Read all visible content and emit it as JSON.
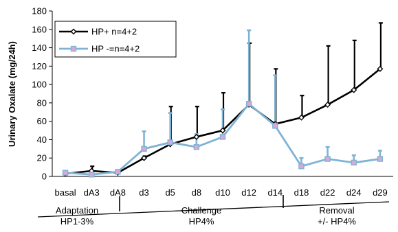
{
  "chart_data": {
    "type": "line",
    "title": "",
    "xlabel": "",
    "ylabel": "Urinary Oxalate (mg/24h)",
    "ylim": [
      0,
      180
    ],
    "yticks": [
      0,
      20,
      40,
      60,
      80,
      100,
      120,
      140,
      160,
      180
    ],
    "categories": [
      "basal",
      "dA3",
      "dA8",
      "d3",
      "d5",
      "d8",
      "d10",
      "d12",
      "d14",
      "d18",
      "d22",
      "d24",
      "d29"
    ],
    "grid": false,
    "legend_position": "top-left",
    "series": [
      {
        "name": "HP+ n=4+2",
        "color": "#000000",
        "marker": "diamond",
        "values": [
          3,
          6,
          4,
          20,
          35,
          43,
          50,
          78,
          57,
          64,
          78,
          94,
          117
        ],
        "error_upper": [
          3,
          11,
          4,
          22,
          76,
          76,
          91,
          145,
          117,
          88,
          142,
          148,
          167
        ]
      },
      {
        "name": "HP -=n=4+2",
        "color": "#7fb3d5",
        "marker": "square",
        "values": [
          4,
          2,
          5,
          30,
          37,
          32,
          43,
          79,
          55,
          11,
          19,
          15,
          19
        ],
        "error_upper": [
          4,
          2,
          5,
          49,
          69,
          46,
          73,
          159,
          110,
          20,
          32,
          23,
          28
        ]
      }
    ],
    "phases": [
      {
        "name": "Adaptation",
        "label": "HP1-3%",
        "from_index": 0,
        "to_index": 2
      },
      {
        "name": "Challenge",
        "label": "HP4%",
        "from_index": 2,
        "to_index": 8
      },
      {
        "name": "Removal",
        "label": "+/-  HP4%",
        "from_index": 8,
        "to_index": 12
      }
    ]
  }
}
